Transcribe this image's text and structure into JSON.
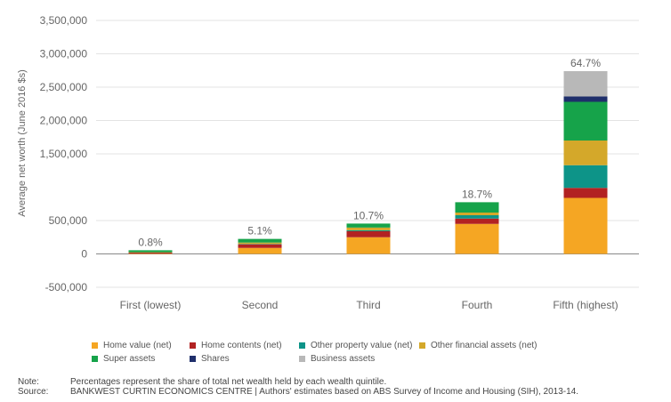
{
  "chart_data": {
    "type": "bar",
    "stacked": true,
    "categories": [
      "First (lowest)",
      "Second",
      "Third",
      "Fourth",
      "Fifth (highest)"
    ],
    "share_labels": [
      "0.8%",
      "5.1%",
      "10.7%",
      "18.7%",
      "64.7%"
    ],
    "series": [
      {
        "name": "Home value (net)",
        "color": "#f5a623",
        "values": [
          5000,
          90000,
          250000,
          450000,
          840000
        ]
      },
      {
        "name": "Home contents (net)",
        "color": "#b22222",
        "values": [
          15000,
          55000,
          90000,
          80000,
          150000
        ]
      },
      {
        "name": "Other property value (net)",
        "color": "#0d9488",
        "values": [
          0,
          5000,
          15000,
          50000,
          340000
        ]
      },
      {
        "name": "Other financial assets (net)",
        "color": "#d4a82a",
        "values": [
          5000,
          20000,
          40000,
          40000,
          370000
        ]
      },
      {
        "name": "Super assets",
        "color": "#16a34a",
        "values": [
          30000,
          55000,
          60000,
          155000,
          580000
        ]
      },
      {
        "name": "Shares",
        "color": "#1f2f6b",
        "values": [
          0,
          0,
          0,
          0,
          80000
        ]
      },
      {
        "name": "Business assets",
        "color": "#b8b8b8",
        "values": [
          0,
          0,
          0,
          0,
          380000
        ]
      }
    ],
    "ylabel": "Average net worth (June 2016 $s)",
    "ylim": [
      -500000,
      3500000
    ],
    "yticks": [
      -500000,
      0,
      500000,
      1500000,
      2000000,
      2500000,
      3000000,
      3500000
    ],
    "ytick_labels": [
      "-500,000",
      "0",
      "500,000",
      "1,500,000",
      "2,000,000",
      "2,500,000",
      "3,000,000",
      "3,500,000"
    ],
    "grid": true,
    "legend_position": "bottom"
  },
  "notes": {
    "note_key": "Note:",
    "note_text": "Percentages represent the share of total net wealth held by each wealth quintile.",
    "source_key": "Source:",
    "source_text": "BANKWEST CURTIN ECONOMICS CENTRE | Authors' estimates based on ABS Survey of Income and Housing (SIH), 2013-14."
  }
}
